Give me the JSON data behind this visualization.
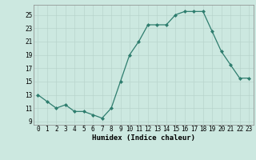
{
  "x": [
    0,
    1,
    2,
    3,
    4,
    5,
    6,
    7,
    8,
    9,
    10,
    11,
    12,
    13,
    14,
    15,
    16,
    17,
    18,
    19,
    20,
    21,
    22,
    23
  ],
  "y": [
    13,
    12,
    11,
    11.5,
    10.5,
    10.5,
    10,
    9.5,
    11,
    15,
    19,
    21,
    23.5,
    23.5,
    23.5,
    25,
    25.5,
    25.5,
    25.5,
    22.5,
    19.5,
    17.5,
    15.5,
    15.5
  ],
  "line_color": "#2e7d6e",
  "marker": "D",
  "marker_size": 2,
  "bg_color": "#cce8e0",
  "grid_color": "#b8d4cc",
  "xlabel": "Humidex (Indice chaleur)",
  "xlim": [
    -0.5,
    23.5
  ],
  "ylim": [
    8.5,
    26.5
  ],
  "yticks": [
    9,
    11,
    13,
    15,
    17,
    19,
    21,
    23,
    25
  ],
  "xticks": [
    0,
    1,
    2,
    3,
    4,
    5,
    6,
    7,
    8,
    9,
    10,
    11,
    12,
    13,
    14,
    15,
    16,
    17,
    18,
    19,
    20,
    21,
    22,
    23
  ],
  "tick_fontsize": 5.5,
  "xlabel_fontsize": 6.5
}
